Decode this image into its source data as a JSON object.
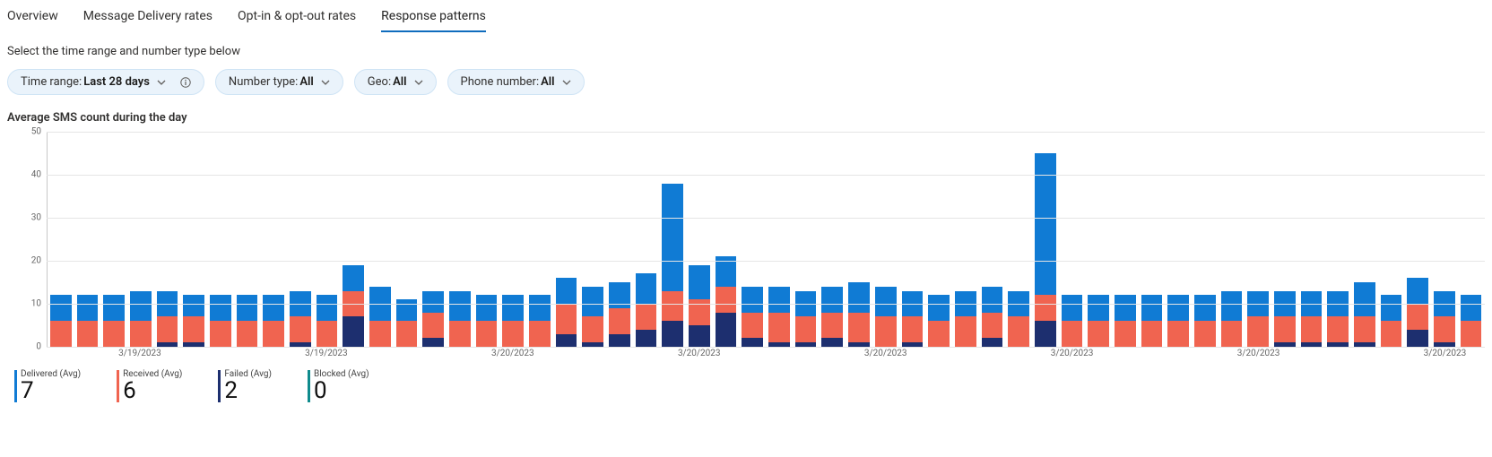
{
  "tabs": {
    "items": [
      {
        "label": "Overview",
        "active": false
      },
      {
        "label": "Message Delivery rates",
        "active": false
      },
      {
        "label": "Opt-in & opt-out rates",
        "active": false
      },
      {
        "label": "Response patterns",
        "active": true
      }
    ]
  },
  "subtitle": "Select the time range and number type below",
  "filters": {
    "time_range": {
      "label": "Time range: ",
      "value": "Last 28 days",
      "info": true
    },
    "number_type": {
      "label": "Number type: ",
      "value": "All"
    },
    "geo": {
      "label": "Geo: ",
      "value": "All"
    },
    "phone": {
      "label": "Phone number: ",
      "value": "All"
    }
  },
  "chart": {
    "title": "Average SMS count during the day",
    "type": "stacked-bar",
    "ylim": [
      0,
      50
    ],
    "ytick_step": 10,
    "yticks": [
      0,
      10,
      20,
      30,
      40,
      50
    ],
    "grid_color": "#e5e5e5",
    "axis_color": "#c8c8c8",
    "background_color": "#ffffff",
    "tick_fontsize": 10,
    "series": [
      {
        "key": "delivered",
        "name": "Delivered (Avg)",
        "color": "#107bd4"
      },
      {
        "key": "received",
        "name": "Received (Avg)",
        "color": "#f06450"
      },
      {
        "key": "failed",
        "name": "Failed (Avg)",
        "color": "#1d2f6f"
      },
      {
        "key": "blocked",
        "name": "Blocked (Avg)",
        "color": "#0f8b8d"
      }
    ],
    "x_labels": [
      {
        "index": 3,
        "text": "3/19/2023"
      },
      {
        "index": 10,
        "text": "3/19/2023"
      },
      {
        "index": 17,
        "text": "3/20/2023"
      },
      {
        "index": 24,
        "text": "3/20/2023"
      },
      {
        "index": 31,
        "text": "3/20/2023"
      },
      {
        "index": 38,
        "text": "3/20/2023"
      },
      {
        "index": 45,
        "text": "3/20/2023"
      },
      {
        "index": 52,
        "text": "3/20/2023"
      }
    ],
    "data": [
      {
        "delivered": 6,
        "received": 6,
        "failed": 0,
        "blocked": 0
      },
      {
        "delivered": 6,
        "received": 6,
        "failed": 0,
        "blocked": 0
      },
      {
        "delivered": 6,
        "received": 6,
        "failed": 0,
        "blocked": 0
      },
      {
        "delivered": 7,
        "received": 6,
        "failed": 0,
        "blocked": 0
      },
      {
        "delivered": 6,
        "received": 6,
        "failed": 1,
        "blocked": 0
      },
      {
        "delivered": 5,
        "received": 6,
        "failed": 1,
        "blocked": 0
      },
      {
        "delivered": 6,
        "received": 6,
        "failed": 0,
        "blocked": 0
      },
      {
        "delivered": 6,
        "received": 6,
        "failed": 0,
        "blocked": 0
      },
      {
        "delivered": 6,
        "received": 6,
        "failed": 0,
        "blocked": 0
      },
      {
        "delivered": 6,
        "received": 6,
        "failed": 1,
        "blocked": 0
      },
      {
        "delivered": 6,
        "received": 6,
        "failed": 0,
        "blocked": 0
      },
      {
        "delivered": 6,
        "received": 6,
        "failed": 7,
        "blocked": 0
      },
      {
        "delivered": 8,
        "received": 6,
        "failed": 0,
        "blocked": 0
      },
      {
        "delivered": 5,
        "received": 6,
        "failed": 0,
        "blocked": 0
      },
      {
        "delivered": 5,
        "received": 6,
        "failed": 2,
        "blocked": 0
      },
      {
        "delivered": 7,
        "received": 6,
        "failed": 0,
        "blocked": 0
      },
      {
        "delivered": 6,
        "received": 6,
        "failed": 0,
        "blocked": 0
      },
      {
        "delivered": 6,
        "received": 6,
        "failed": 0,
        "blocked": 0
      },
      {
        "delivered": 6,
        "received": 6,
        "failed": 0,
        "blocked": 0
      },
      {
        "delivered": 6,
        "received": 7,
        "failed": 3,
        "blocked": 0
      },
      {
        "delivered": 7,
        "received": 6,
        "failed": 1,
        "blocked": 0
      },
      {
        "delivered": 6,
        "received": 6,
        "failed": 3,
        "blocked": 0
      },
      {
        "delivered": 7,
        "received": 6,
        "failed": 4,
        "blocked": 0
      },
      {
        "delivered": 25,
        "received": 7,
        "failed": 6,
        "blocked": 0
      },
      {
        "delivered": 8,
        "received": 6,
        "failed": 5,
        "blocked": 0
      },
      {
        "delivered": 7,
        "received": 6,
        "failed": 8,
        "blocked": 0
      },
      {
        "delivered": 6,
        "received": 6,
        "failed": 2,
        "blocked": 0
      },
      {
        "delivered": 6,
        "received": 7,
        "failed": 1,
        "blocked": 0
      },
      {
        "delivered": 6,
        "received": 6,
        "failed": 1,
        "blocked": 0
      },
      {
        "delivered": 6,
        "received": 6,
        "failed": 2,
        "blocked": 0
      },
      {
        "delivered": 7,
        "received": 7,
        "failed": 1,
        "blocked": 0
      },
      {
        "delivered": 7,
        "received": 7,
        "failed": 0,
        "blocked": 0
      },
      {
        "delivered": 6,
        "received": 6,
        "failed": 1,
        "blocked": 0
      },
      {
        "delivered": 6,
        "received": 6,
        "failed": 0,
        "blocked": 0
      },
      {
        "delivered": 6,
        "received": 7,
        "failed": 0,
        "blocked": 0
      },
      {
        "delivered": 6,
        "received": 6,
        "failed": 2,
        "blocked": 0
      },
      {
        "delivered": 6,
        "received": 7,
        "failed": 0,
        "blocked": 0
      },
      {
        "delivered": 33,
        "received": 6,
        "failed": 6,
        "blocked": 0
      },
      {
        "delivered": 6,
        "received": 6,
        "failed": 0,
        "blocked": 0
      },
      {
        "delivered": 6,
        "received": 6,
        "failed": 0,
        "blocked": 0
      },
      {
        "delivered": 6,
        "received": 6,
        "failed": 0,
        "blocked": 0
      },
      {
        "delivered": 6,
        "received": 6,
        "failed": 0,
        "blocked": 0
      },
      {
        "delivered": 6,
        "received": 6,
        "failed": 0,
        "blocked": 0
      },
      {
        "delivered": 6,
        "received": 6,
        "failed": 0,
        "blocked": 0
      },
      {
        "delivered": 7,
        "received": 6,
        "failed": 0,
        "blocked": 0
      },
      {
        "delivered": 6,
        "received": 7,
        "failed": 0,
        "blocked": 0
      },
      {
        "delivered": 6,
        "received": 6,
        "failed": 1,
        "blocked": 0
      },
      {
        "delivered": 6,
        "received": 6,
        "failed": 1,
        "blocked": 0
      },
      {
        "delivered": 6,
        "received": 6,
        "failed": 1,
        "blocked": 0
      },
      {
        "delivered": 8,
        "received": 6,
        "failed": 1,
        "blocked": 0
      },
      {
        "delivered": 6,
        "received": 6,
        "failed": 0,
        "blocked": 0
      },
      {
        "delivered": 6,
        "received": 6,
        "failed": 4,
        "blocked": 0
      },
      {
        "delivered": 6,
        "received": 6,
        "failed": 1,
        "blocked": 0
      },
      {
        "delivered": 6,
        "received": 6,
        "failed": 0,
        "blocked": 0
      }
    ]
  },
  "kpis": [
    {
      "label": "Delivered (Avg)",
      "value": "7",
      "color": "#107bd4"
    },
    {
      "label": "Received (Avg)",
      "value": "6",
      "color": "#f06450"
    },
    {
      "label": "Failed (Avg)",
      "value": "2",
      "color": "#1d2f6f"
    },
    {
      "label": "Blocked (Avg)",
      "value": "0",
      "color": "#0f8b8d"
    }
  ]
}
